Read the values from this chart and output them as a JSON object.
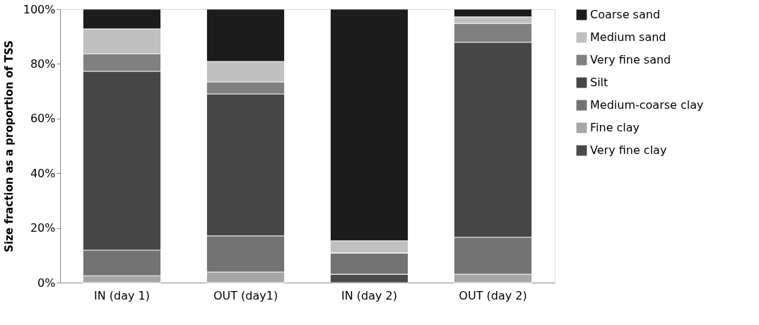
{
  "chart_data": {
    "type": "bar",
    "stacked": true,
    "ylabel": "Size fraction as a proportion of TSS",
    "categories": [
      "IN (day 1)",
      "OUT (day1)",
      "IN (day 2)",
      "OUT (day 2)"
    ],
    "series": [
      {
        "name": "Very fine clay",
        "color": "#4a4a4a",
        "values": [
          0,
          0,
          3.1,
          0
        ]
      },
      {
        "name": "Fine clay",
        "color": "#a6a6a6",
        "values": [
          2.5,
          3.9,
          0,
          3.1
        ]
      },
      {
        "name": "Medium-coarse clay",
        "color": "#737373",
        "values": [
          9.4,
          13.2,
          7.8,
          13.5
        ]
      },
      {
        "name": "Silt",
        "color": "#464646",
        "values": [
          65.4,
          51.9,
          0,
          71.3
        ]
      },
      {
        "name": "Very fine sand",
        "color": "#808080",
        "values": [
          6.4,
          4.4,
          0,
          6.9
        ]
      },
      {
        "name": "Medium sand",
        "color": "#c0c0c0",
        "values": [
          9.1,
          7.5,
          4.4,
          2.4
        ]
      },
      {
        "name": "Coarse sand",
        "color": "#1c1c1c",
        "values": [
          7.2,
          19.1,
          84.7,
          2.8
        ]
      }
    ],
    "ylim": [
      0,
      100
    ],
    "yticks": [
      {
        "value": 0,
        "label": "0%"
      },
      {
        "value": 20,
        "label": "20%"
      },
      {
        "value": 40,
        "label": "40%"
      },
      {
        "value": 60,
        "label": "60%"
      },
      {
        "value": 80,
        "label": "80%"
      },
      {
        "value": 100,
        "label": "100%"
      }
    ],
    "grid": false,
    "legend": "right"
  }
}
